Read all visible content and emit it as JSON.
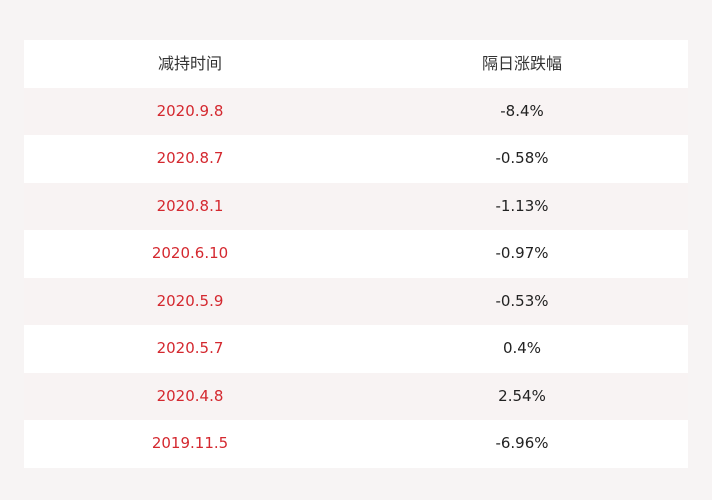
{
  "table": {
    "headers": {
      "date": "减持时间",
      "change": "隔日涨跌幅"
    },
    "rows": [
      {
        "date": "2020.9.8",
        "change": "-8.4%"
      },
      {
        "date": "2020.8.7",
        "change": "-0.58%"
      },
      {
        "date": "2020.8.1",
        "change": "-1.13%"
      },
      {
        "date": "2020.6.10",
        "change": "-0.97%"
      },
      {
        "date": "2020.5.9",
        "change": "-0.53%"
      },
      {
        "date": "2020.5.7",
        "change": "0.4%"
      },
      {
        "date": "2020.4.8",
        "change": "2.54%"
      },
      {
        "date": "2019.11.5",
        "change": "-6.96%"
      }
    ],
    "colors": {
      "date_text": "#d4282f",
      "value_text": "#222222",
      "row_white": "#ffffff",
      "row_alt": "#f8f3f3",
      "page_background": "#f7f4f4"
    }
  }
}
